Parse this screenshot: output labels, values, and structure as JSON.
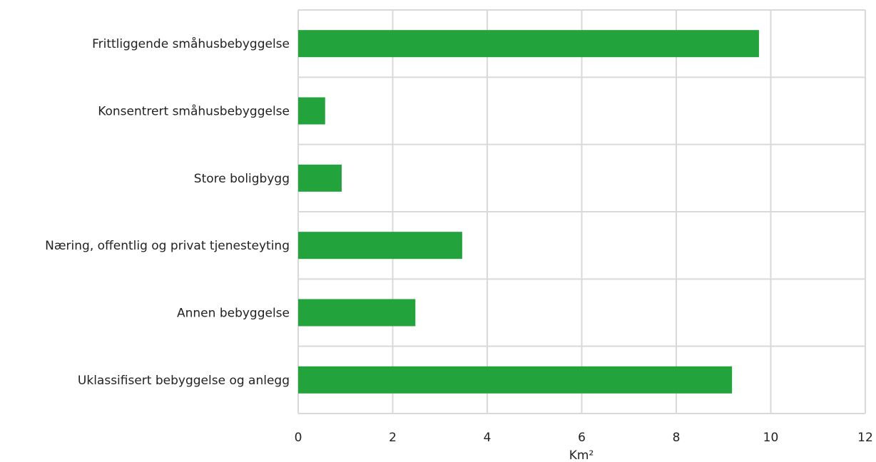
{
  "chart_data": {
    "type": "bar",
    "orientation": "horizontal",
    "categories": [
      "Frittliggende småhusbebyggelse",
      "Konsentrert småhusbebyggelse",
      "Store boligbygg",
      "Næring, offentlig og privat tjenesteyting",
      "Annen bebyggelse",
      "Uklassifisert bebyggelse og anlegg"
    ],
    "values": [
      9.75,
      0.57,
      0.92,
      3.47,
      2.48,
      9.18
    ],
    "xlabel": "Km²",
    "ylabel": "",
    "title": "",
    "xlim": [
      0,
      12
    ],
    "xticks": [
      "0",
      "2",
      "4",
      "6",
      "8",
      "10",
      "12"
    ],
    "grid": true,
    "legend": "none",
    "bar_color": "#22a33c",
    "grid_color": "#d9d9d9"
  }
}
